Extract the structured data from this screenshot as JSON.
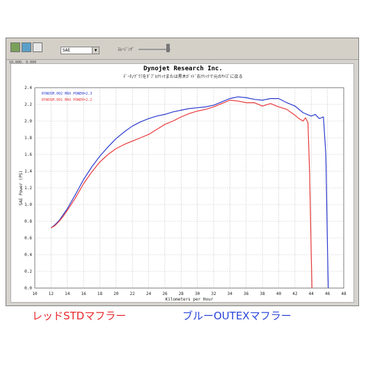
{
  "toolbar": {
    "select_value": "SAE",
    "slider_label": "ｽﾑｰｼﾞﾝｸﾞ"
  },
  "status_text": "10,000, 0.000",
  "chart_data": {
    "type": "line",
    "title": "Dynojet Research Inc.",
    "subtitle": "ﾃﾞｰﾀ/ｸﾞﾗﾌをﾀﾞﾌﾞﾙｸﾘｯｸまたは黒木ｶﾞｲﾄﾞ右ｸﾘｯｸで元のｻｲｽﾞに戻る",
    "xlabel": "Kilometers per Hour",
    "ylabel": "SAE Power (PS)",
    "xlim": [
      10,
      48
    ],
    "ylim": [
      0,
      2.4
    ],
    "grid": true,
    "xticks": [
      10,
      12,
      14,
      16,
      18,
      20,
      22,
      24,
      26,
      28,
      30,
      32,
      34,
      36,
      38,
      40,
      42,
      44,
      46,
      48
    ],
    "yticks": [
      0.0,
      0.2,
      0.4,
      0.6,
      0.8,
      1.0,
      1.2,
      1.4,
      1.6,
      1.8,
      2.0,
      2.2,
      2.4
    ],
    "legend": [
      {
        "text": "RYWOSM.002  MAX POWER=2.3",
        "color": "#2b3bd0"
      },
      {
        "text": "RYWOSM.001  MAX POWER=2.2",
        "color": "#e8383a"
      }
    ],
    "series": [
      {
        "color": "#2b3bd0",
        "x": [
          12.0,
          12.5,
          13.0,
          13.5,
          14.0,
          15.0,
          16.0,
          17.0,
          18.0,
          19.0,
          20.0,
          21.0,
          22.0,
          23.0,
          24.0,
          25.0,
          26.0,
          27.0,
          28.0,
          29.0,
          30.0,
          31.0,
          32.0,
          33.0,
          34.0,
          35.0,
          36.0,
          37.0,
          38.0,
          39.0,
          40.0,
          41.0,
          42.0,
          43.0,
          43.5,
          44.0,
          44.5,
          45.0,
          45.5,
          45.8,
          46.0,
          46.1
        ],
        "y": [
          0.72,
          0.76,
          0.81,
          0.88,
          0.95,
          1.12,
          1.3,
          1.45,
          1.58,
          1.69,
          1.79,
          1.87,
          1.94,
          1.99,
          2.03,
          2.06,
          2.08,
          2.11,
          2.13,
          2.15,
          2.16,
          2.17,
          2.19,
          2.23,
          2.27,
          2.29,
          2.28,
          2.26,
          2.25,
          2.27,
          2.27,
          2.22,
          2.18,
          2.1,
          2.08,
          2.06,
          2.08,
          2.03,
          2.05,
          1.6,
          0.5,
          0.0
        ]
      },
      {
        "color": "#e8383a",
        "x": [
          12.0,
          12.5,
          13.0,
          13.5,
          14.0,
          15.0,
          16.0,
          17.0,
          18.0,
          19.0,
          20.0,
          21.0,
          22.0,
          23.0,
          24.0,
          25.0,
          26.0,
          27.0,
          28.0,
          29.0,
          30.0,
          31.0,
          32.0,
          33.0,
          34.0,
          35.0,
          36.0,
          37.0,
          38.0,
          39.0,
          40.0,
          41.0,
          42.0,
          42.5,
          43.0,
          43.3,
          43.6,
          43.8,
          44.0,
          44.1
        ],
        "y": [
          0.72,
          0.75,
          0.8,
          0.86,
          0.93,
          1.08,
          1.25,
          1.39,
          1.51,
          1.6,
          1.67,
          1.72,
          1.76,
          1.8,
          1.84,
          1.9,
          1.96,
          2.0,
          2.05,
          2.09,
          2.12,
          2.14,
          2.17,
          2.21,
          2.25,
          2.24,
          2.22,
          2.22,
          2.18,
          2.21,
          2.17,
          2.14,
          2.07,
          2.03,
          2.0,
          2.04,
          1.98,
          1.4,
          0.4,
          0.0
        ]
      }
    ]
  },
  "captions": {
    "red": "レッドSTDマフラー",
    "blue": "ブルーOUTEXマフラー"
  }
}
